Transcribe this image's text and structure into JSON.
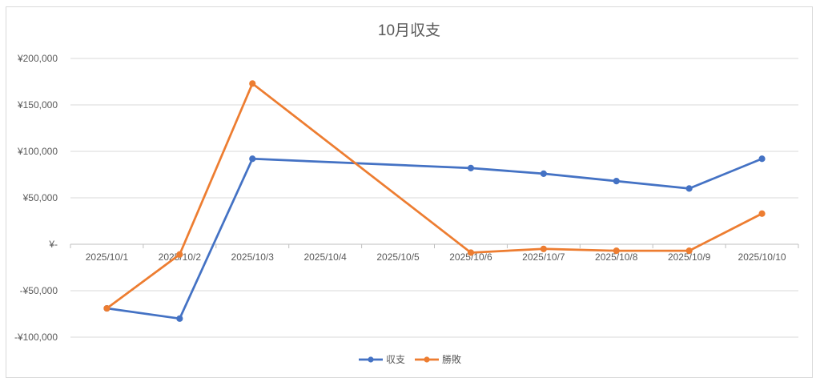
{
  "chart_data": {
    "type": "line",
    "title": "10月収支",
    "categories": [
      "2025/10/1",
      "2025/10/2",
      "2025/10/3",
      "2025/10/4",
      "2025/10/5",
      "2025/10/6",
      "2025/10/7",
      "2025/10/8",
      "2025/10/9",
      "2025/10/10"
    ],
    "y_tick_labels": [
      "¥200,000",
      "¥150,000",
      "¥100,000",
      "¥50,000",
      "¥-",
      "-¥50,000",
      "-¥100,000"
    ],
    "ylim": [
      -100000,
      200000
    ],
    "y_tick_step": 50000,
    "grid": true,
    "legend_position": "bottom",
    "series": [
      {
        "name": "収支",
        "color": "#4472C4",
        "points": [
          {
            "x": "2025/10/1",
            "y": -69000
          },
          {
            "x": "2025/10/2",
            "y": -80000
          },
          {
            "x": "2025/10/3",
            "y": 92000
          },
          {
            "x": "2025/10/6",
            "y": 82000
          },
          {
            "x": "2025/10/7",
            "y": 76000
          },
          {
            "x": "2025/10/8",
            "y": 68000
          },
          {
            "x": "2025/10/9",
            "y": 60000
          },
          {
            "x": "2025/10/10",
            "y": 92000
          }
        ]
      },
      {
        "name": "勝敗",
        "color": "#ED7D31",
        "points": [
          {
            "x": "2025/10/1",
            "y": -69000
          },
          {
            "x": "2025/10/2",
            "y": -11000
          },
          {
            "x": "2025/10/3",
            "y": 173000
          },
          {
            "x": "2025/10/6",
            "y": -9000
          },
          {
            "x": "2025/10/7",
            "y": -5000
          },
          {
            "x": "2025/10/8",
            "y": -7000
          },
          {
            "x": "2025/10/9",
            "y": -7000
          },
          {
            "x": "2025/10/10",
            "y": 33000
          }
        ]
      }
    ]
  }
}
